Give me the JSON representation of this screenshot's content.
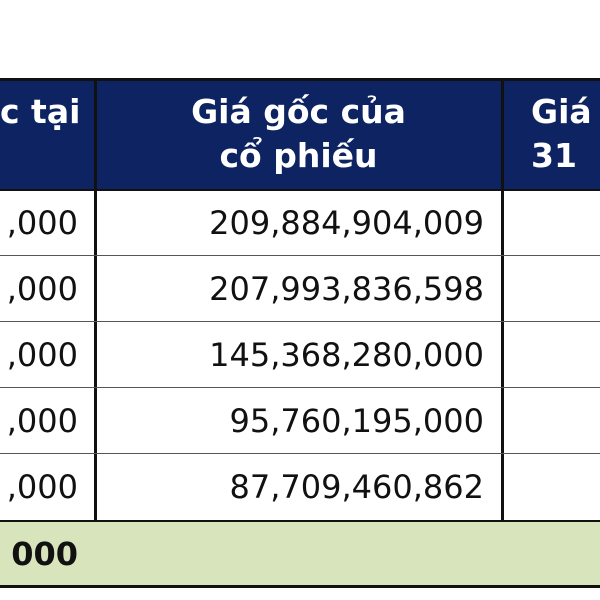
{
  "header": {
    "left": "c tại",
    "middle": "Giá gốc của\ncổ phiếu",
    "right": "Giá\n31"
  },
  "rows": [
    {
      "left": ",000",
      "middle": "209,884,904,009",
      "right": ""
    },
    {
      "left": ",000",
      "middle": "207,993,836,598",
      "right": ""
    },
    {
      "left": ",000",
      "middle": "145,368,280,000",
      "right": ""
    },
    {
      "left": ",000",
      "middle": "95,760,195,000",
      "right": ""
    },
    {
      "left": ",000",
      "middle": "87,709,460,862",
      "right": ""
    }
  ],
  "total": {
    "left": "000",
    "middle": "",
    "right": ""
  },
  "colors": {
    "header_background": "#0e2361",
    "header_text": "#ffffff",
    "total_background": "#d8e4bc"
  }
}
